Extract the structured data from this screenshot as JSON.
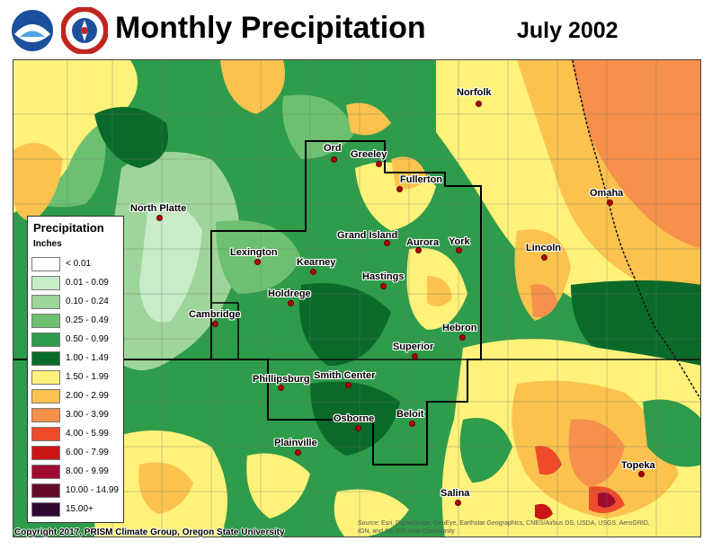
{
  "header": {
    "title": "Monthly Precipitation",
    "date": "July 2002"
  },
  "legend": {
    "title": "Precipitation",
    "units": "Inches",
    "classes": [
      {
        "label": "< 0.01",
        "color": "#ffffff"
      },
      {
        "label": "0.01 - 0.09",
        "color": "#c8ebc8"
      },
      {
        "label": "0.10 - 0.24",
        "color": "#9ed59a"
      },
      {
        "label": "0.25 - 0.49",
        "color": "#6cc070"
      },
      {
        "label": "0.50 - 0.99",
        "color": "#2e9c4a"
      },
      {
        "label": "1.00 - 1.49",
        "color": "#0a6a2a"
      },
      {
        "label": "1.50 - 1.99",
        "color": "#fff27a"
      },
      {
        "label": "2.00 - 2.99",
        "color": "#fbc24e"
      },
      {
        "label": "3.00 - 3.99",
        "color": "#f6904a"
      },
      {
        "label": "4.00 - 5.99",
        "color": "#ee4b2b"
      },
      {
        "label": "6.00 - 7.99",
        "color": "#cc1515"
      },
      {
        "label": "8.00 - 9.99",
        "color": "#a00a30"
      },
      {
        "label": "10.00 - 14.99",
        "color": "#640a2a"
      },
      {
        "label": "15.00+",
        "color": "#2c0a30"
      }
    ]
  },
  "cities": [
    {
      "name": "Norfolk"
    },
    {
      "name": "Ord"
    },
    {
      "name": "Greeley"
    },
    {
      "name": "Fullerton"
    },
    {
      "name": "North Platte"
    },
    {
      "name": "Omaha"
    },
    {
      "name": "Grand Island"
    },
    {
      "name": "Aurora"
    },
    {
      "name": "York"
    },
    {
      "name": "Lincoln"
    },
    {
      "name": "Lexington"
    },
    {
      "name": "Kearney"
    },
    {
      "name": "Hastings"
    },
    {
      "name": "Holdrege"
    },
    {
      "name": "Cambridge"
    },
    {
      "name": "Hebron"
    },
    {
      "name": "Superior"
    },
    {
      "name": "Phillipsburg"
    },
    {
      "name": "Smith Center"
    },
    {
      "name": "Osborne"
    },
    {
      "name": "Beloit"
    },
    {
      "name": "Plainville"
    },
    {
      "name": "Topeka"
    },
    {
      "name": "Salina"
    }
  ],
  "footer": {
    "copyright": "Copyright 2017, PRISM Climate Group, Oregon State University",
    "source_line1": "Source: Esri, DigitalGlobe, GeoEye, Earthstar Geographics, CNES/Airbus DS, USDA, USGS, AeroGRID,",
    "source_line2": "IGN, and the GIS User Community"
  }
}
